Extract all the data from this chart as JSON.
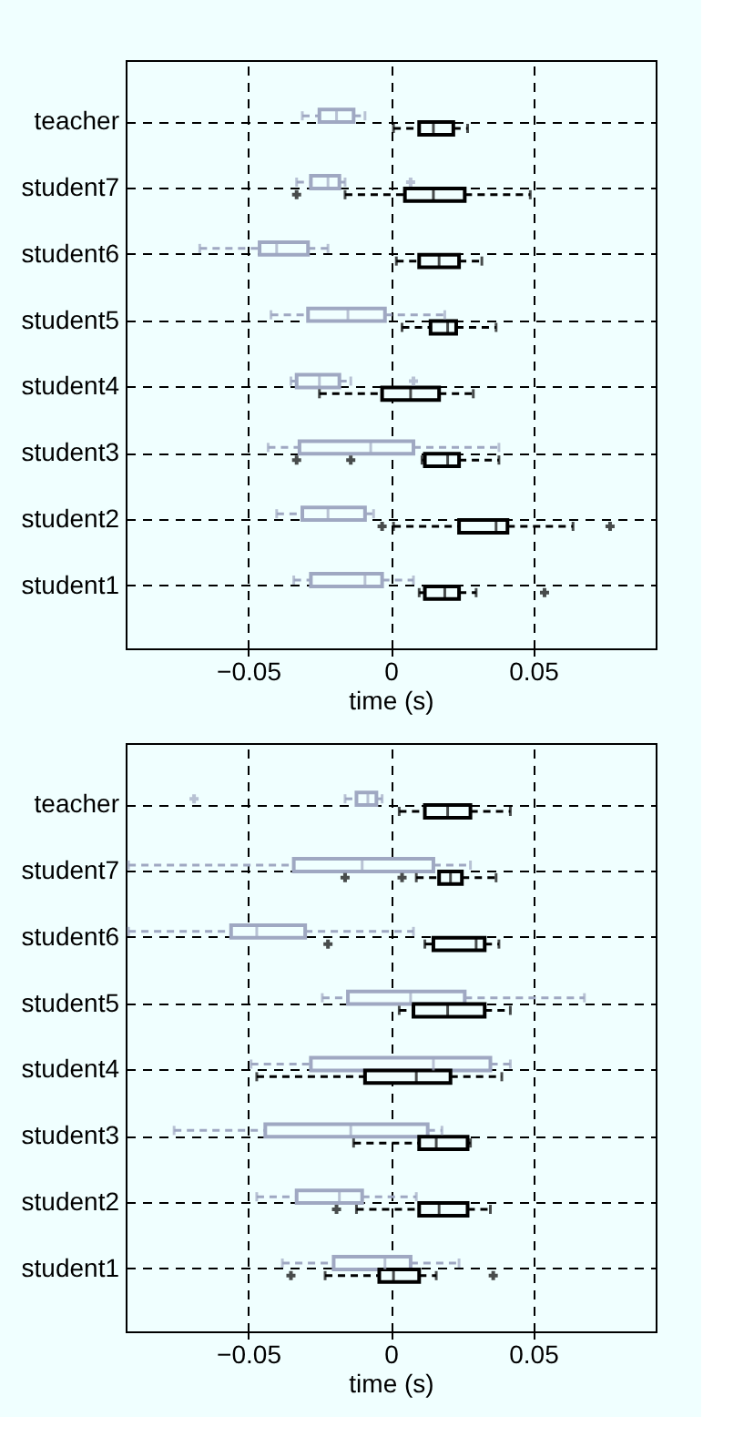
{
  "chart_data": [
    {
      "type": "box",
      "orientation": "horizontal",
      "xlabel": "time (s)",
      "xlim": [
        -0.093,
        0.093
      ],
      "xticks": [
        {
          "value": -0.05,
          "label": "−0.05"
        },
        0,
        0.05
      ],
      "grid": true,
      "categories": [
        "teacher",
        "student7",
        "student6",
        "student5",
        "student4",
        "student3",
        "student2",
        "student1"
      ],
      "series": [
        {
          "color": "#9fa8c2",
          "boxes": [
            {
              "low": -0.031,
              "q1": -0.025,
              "median": -0.019,
              "q3": -0.013,
              "high": -0.009
            },
            {
              "low": -0.033,
              "q1": -0.028,
              "median": -0.022,
              "q3": -0.018,
              "high": -0.016,
              "outliers": [
                0.007
              ]
            },
            {
              "low": -0.067,
              "q1": -0.046,
              "median": -0.04,
              "q3": -0.029,
              "high": -0.022
            },
            {
              "low": -0.042,
              "q1": -0.029,
              "median": -0.015,
              "q3": -0.002,
              "high": 0.019
            },
            {
              "low": -0.035,
              "q1": -0.033,
              "median": -0.025,
              "q3": -0.018,
              "high": -0.014,
              "outliers": [
                0.008
              ]
            },
            {
              "low": -0.043,
              "q1": -0.032,
              "median": -0.007,
              "q3": 0.008,
              "high": 0.038
            },
            {
              "low": -0.04,
              "q1": -0.031,
              "median": -0.022,
              "q3": -0.009,
              "high": -0.006
            },
            {
              "low": -0.034,
              "q1": -0.028,
              "median": -0.009,
              "q3": -0.003,
              "high": 0.008
            }
          ]
        },
        {
          "color": "#000000",
          "boxes": [
            {
              "low": 0.001,
              "q1": 0.01,
              "median": 0.015,
              "q3": 0.022,
              "high": 0.027
            },
            {
              "low": -0.016,
              "q1": 0.005,
              "median": 0.015,
              "q3": 0.026,
              "high": 0.049,
              "outliers": [
                -0.033
              ]
            },
            {
              "low": 0.002,
              "q1": 0.01,
              "median": 0.017,
              "q3": 0.024,
              "high": 0.032
            },
            {
              "low": 0.004,
              "q1": 0.014,
              "median": 0.02,
              "q3": 0.023,
              "high": 0.037
            },
            {
              "low": -0.025,
              "q1": -0.003,
              "median": 0.007,
              "q3": 0.017,
              "high": 0.029
            },
            {
              "low": 0.011,
              "q1": 0.012,
              "median": 0.02,
              "q3": 0.024,
              "high": 0.038,
              "outliers": [
                -0.033,
                -0.014
              ]
            },
            {
              "low": 0.001,
              "q1": 0.024,
              "median": 0.037,
              "q3": 0.041,
              "high": 0.064,
              "outliers": [
                -0.003,
                0.077
              ]
            },
            {
              "low": 0.01,
              "q1": 0.012,
              "median": 0.019,
              "q3": 0.024,
              "high": 0.03,
              "outliers": [
                0.054
              ]
            }
          ]
        }
      ]
    },
    {
      "type": "box",
      "orientation": "horizontal",
      "xlabel": "time (s)",
      "xlim": [
        -0.093,
        0.093
      ],
      "xticks": [
        {
          "value": -0.05,
          "label": "−0.05"
        },
        0,
        0.05
      ],
      "grid": true,
      "categories": [
        "teacher",
        "student7",
        "student6",
        "student5",
        "student4",
        "student3",
        "student2",
        "student1"
      ],
      "series": [
        {
          "color": "#9fa8c2",
          "boxes": [
            {
              "low": -0.016,
              "q1": -0.012,
              "median": -0.008,
              "q3": -0.005,
              "high": -0.003,
              "outliers": [
                -0.069
              ]
            },
            {
              "low": -0.092,
              "q1": -0.034,
              "median": -0.01,
              "q3": 0.015,
              "high": 0.028
            },
            {
              "low": -0.092,
              "q1": -0.056,
              "median": -0.047,
              "q3": -0.03,
              "high": 0.008
            },
            {
              "low": -0.024,
              "q1": -0.015,
              "median": 0.007,
              "q3": 0.026,
              "high": 0.068
            },
            {
              "low": -0.049,
              "q1": -0.028,
              "median": 0.015,
              "q3": 0.035,
              "high": 0.042
            },
            {
              "low": -0.076,
              "q1": -0.044,
              "median": -0.014,
              "q3": 0.013,
              "high": 0.018
            },
            {
              "low": -0.047,
              "q1": -0.033,
              "median": -0.018,
              "q3": -0.01,
              "high": 0.009
            },
            {
              "low": -0.038,
              "q1": -0.02,
              "median": -0.002,
              "q3": 0.007,
              "high": 0.024
            }
          ]
        },
        {
          "color": "#000000",
          "boxes": [
            {
              "low": 0.003,
              "q1": 0.012,
              "median": 0.02,
              "q3": 0.028,
              "high": 0.042
            },
            {
              "low": 0.009,
              "q1": 0.017,
              "median": 0.021,
              "q3": 0.025,
              "high": 0.037,
              "outliers": [
                -0.016,
                0.004
              ]
            },
            {
              "low": 0.012,
              "q1": 0.015,
              "median": 0.03,
              "q3": 0.033,
              "high": 0.038,
              "outliers": [
                -0.022
              ]
            },
            {
              "low": 0.003,
              "q1": 0.008,
              "median": 0.02,
              "q3": 0.033,
              "high": 0.042
            },
            {
              "low": -0.047,
              "q1": -0.009,
              "median": 0.009,
              "q3": 0.021,
              "high": 0.039
            },
            {
              "low": -0.013,
              "q1": 0.01,
              "median": 0.016,
              "q3": 0.027,
              "high": 0.028
            },
            {
              "low": -0.012,
              "q1": 0.01,
              "median": 0.017,
              "q3": 0.027,
              "high": 0.035,
              "outliers": [
                -0.019
              ]
            },
            {
              "low": -0.023,
              "q1": -0.004,
              "median": 0.001,
              "q3": 0.01,
              "high": 0.016,
              "outliers": [
                -0.035,
                0.036
              ]
            }
          ]
        }
      ]
    }
  ]
}
